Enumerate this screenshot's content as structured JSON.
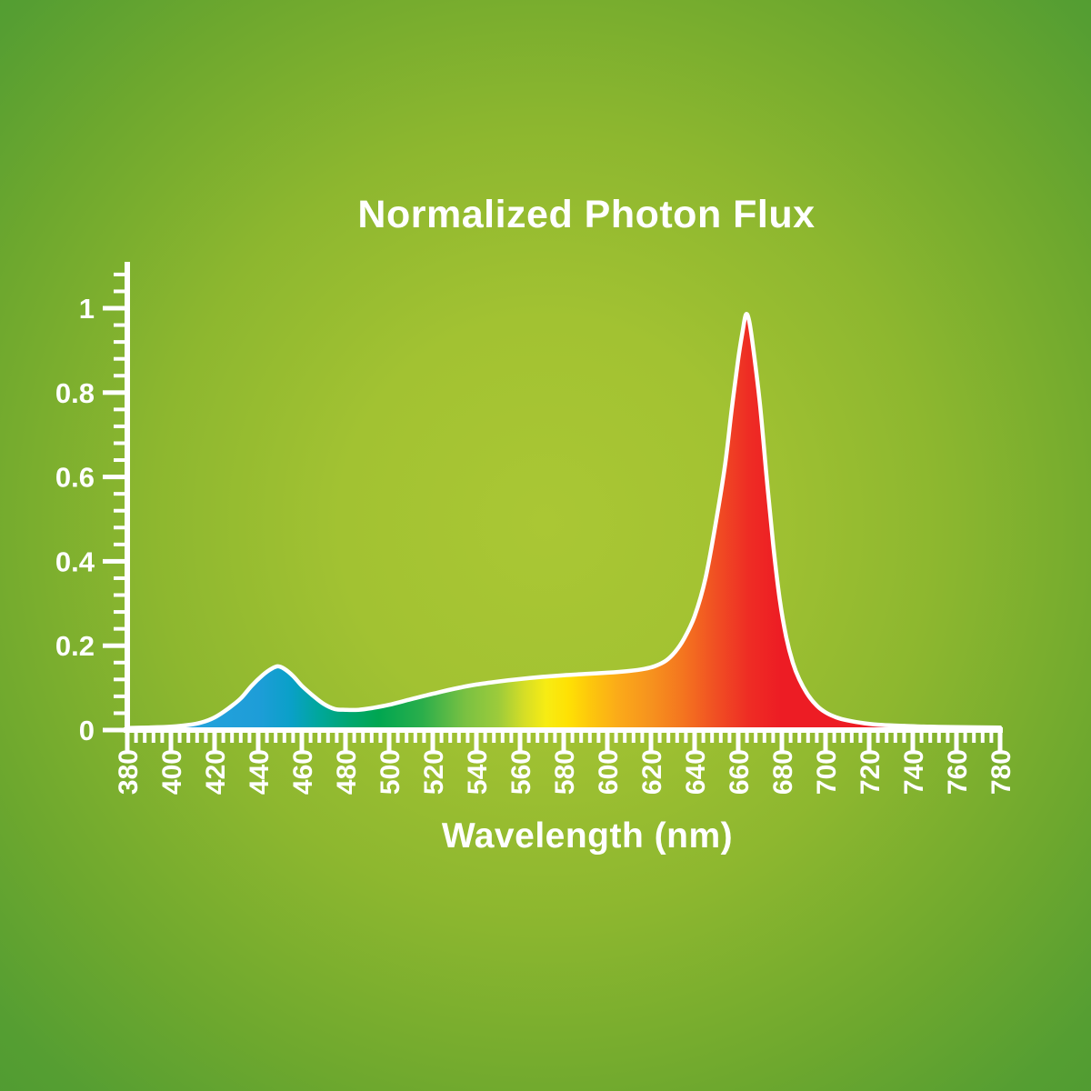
{
  "chart_data": {
    "type": "area",
    "title": "Normalized Photon Flux",
    "xlabel": "Wavelength (nm)",
    "ylabel": "",
    "xlim": [
      380,
      780
    ],
    "ylim": [
      0,
      1.08
    ],
    "grid": false,
    "legend": "none",
    "x_tick_labels": [
      "380",
      "400",
      "420",
      "440",
      "460",
      "480",
      "500",
      "520",
      "540",
      "560",
      "580",
      "600",
      "620",
      "640",
      "660",
      "680",
      "700",
      "720",
      "740",
      "760",
      "780"
    ],
    "x_major_step": 20,
    "x_minor_step": 4,
    "y_tick_values": [
      0,
      0.2,
      0.4,
      0.6,
      0.8,
      1
    ],
    "y_tick_labels": [
      "0",
      "0.2",
      "0.4",
      "0.6",
      "0.8",
      "1"
    ],
    "y_minor_step": 0.04,
    "series": [
      {
        "name": "Normalized Photon Flux",
        "points": [
          [
            380,
            0.005
          ],
          [
            390,
            0.006
          ],
          [
            400,
            0.008
          ],
          [
            408,
            0.012
          ],
          [
            414,
            0.018
          ],
          [
            420,
            0.03
          ],
          [
            426,
            0.05
          ],
          [
            432,
            0.075
          ],
          [
            437,
            0.105
          ],
          [
            442,
            0.13
          ],
          [
            446,
            0.145
          ],
          [
            449,
            0.151
          ],
          [
            452,
            0.145
          ],
          [
            456,
            0.128
          ],
          [
            460,
            0.105
          ],
          [
            465,
            0.082
          ],
          [
            470,
            0.062
          ],
          [
            475,
            0.05
          ],
          [
            480,
            0.048
          ],
          [
            486,
            0.048
          ],
          [
            492,
            0.052
          ],
          [
            500,
            0.06
          ],
          [
            510,
            0.073
          ],
          [
            520,
            0.086
          ],
          [
            530,
            0.098
          ],
          [
            540,
            0.108
          ],
          [
            550,
            0.115
          ],
          [
            560,
            0.121
          ],
          [
            570,
            0.126
          ],
          [
            580,
            0.13
          ],
          [
            590,
            0.133
          ],
          [
            600,
            0.136
          ],
          [
            610,
            0.14
          ],
          [
            617,
            0.145
          ],
          [
            622,
            0.152
          ],
          [
            627,
            0.165
          ],
          [
            631,
            0.185
          ],
          [
            635,
            0.215
          ],
          [
            640,
            0.27
          ],
          [
            645,
            0.36
          ],
          [
            650,
            0.5
          ],
          [
            654,
            0.63
          ],
          [
            657,
            0.76
          ],
          [
            660,
            0.88
          ],
          [
            662,
            0.945
          ],
          [
            663.5,
            0.985
          ],
          [
            665,
            0.97
          ],
          [
            667,
            0.9
          ],
          [
            670,
            0.77
          ],
          [
            673,
            0.6
          ],
          [
            676,
            0.44
          ],
          [
            679,
            0.31
          ],
          [
            682,
            0.22
          ],
          [
            685,
            0.16
          ],
          [
            688,
            0.12
          ],
          [
            692,
            0.083
          ],
          [
            696,
            0.058
          ],
          [
            700,
            0.042
          ],
          [
            705,
            0.03
          ],
          [
            710,
            0.023
          ],
          [
            718,
            0.016
          ],
          [
            726,
            0.012
          ],
          [
            736,
            0.01
          ],
          [
            748,
            0.008
          ],
          [
            760,
            0.007
          ],
          [
            780,
            0.006
          ]
        ]
      }
    ],
    "gradient_stops": [
      [
        380,
        "#2aa9df"
      ],
      [
        440,
        "#1e9dd8"
      ],
      [
        455,
        "#0aa0c8"
      ],
      [
        468,
        "#00a79b"
      ],
      [
        482,
        "#00a66f"
      ],
      [
        495,
        "#00a651"
      ],
      [
        515,
        "#2aae4b"
      ],
      [
        535,
        "#7ac142"
      ],
      [
        550,
        "#9ccb3b"
      ],
      [
        562,
        "#d6de26"
      ],
      [
        572,
        "#f7ec13"
      ],
      [
        582,
        "#fee104"
      ],
      [
        592,
        "#fdc70c"
      ],
      [
        605,
        "#fbaa19"
      ],
      [
        620,
        "#f6921e"
      ],
      [
        635,
        "#f4741f"
      ],
      [
        650,
        "#f04e23"
      ],
      [
        665,
        "#ee2c24"
      ],
      [
        680,
        "#ed1c24"
      ],
      [
        780,
        "#ed1c24"
      ]
    ],
    "colors": {
      "background_center": "#aac734",
      "background_edge": "#4f9b33",
      "axis": "#ffffff",
      "text": "#ffffff",
      "curve_stroke": "#ffffff"
    }
  }
}
